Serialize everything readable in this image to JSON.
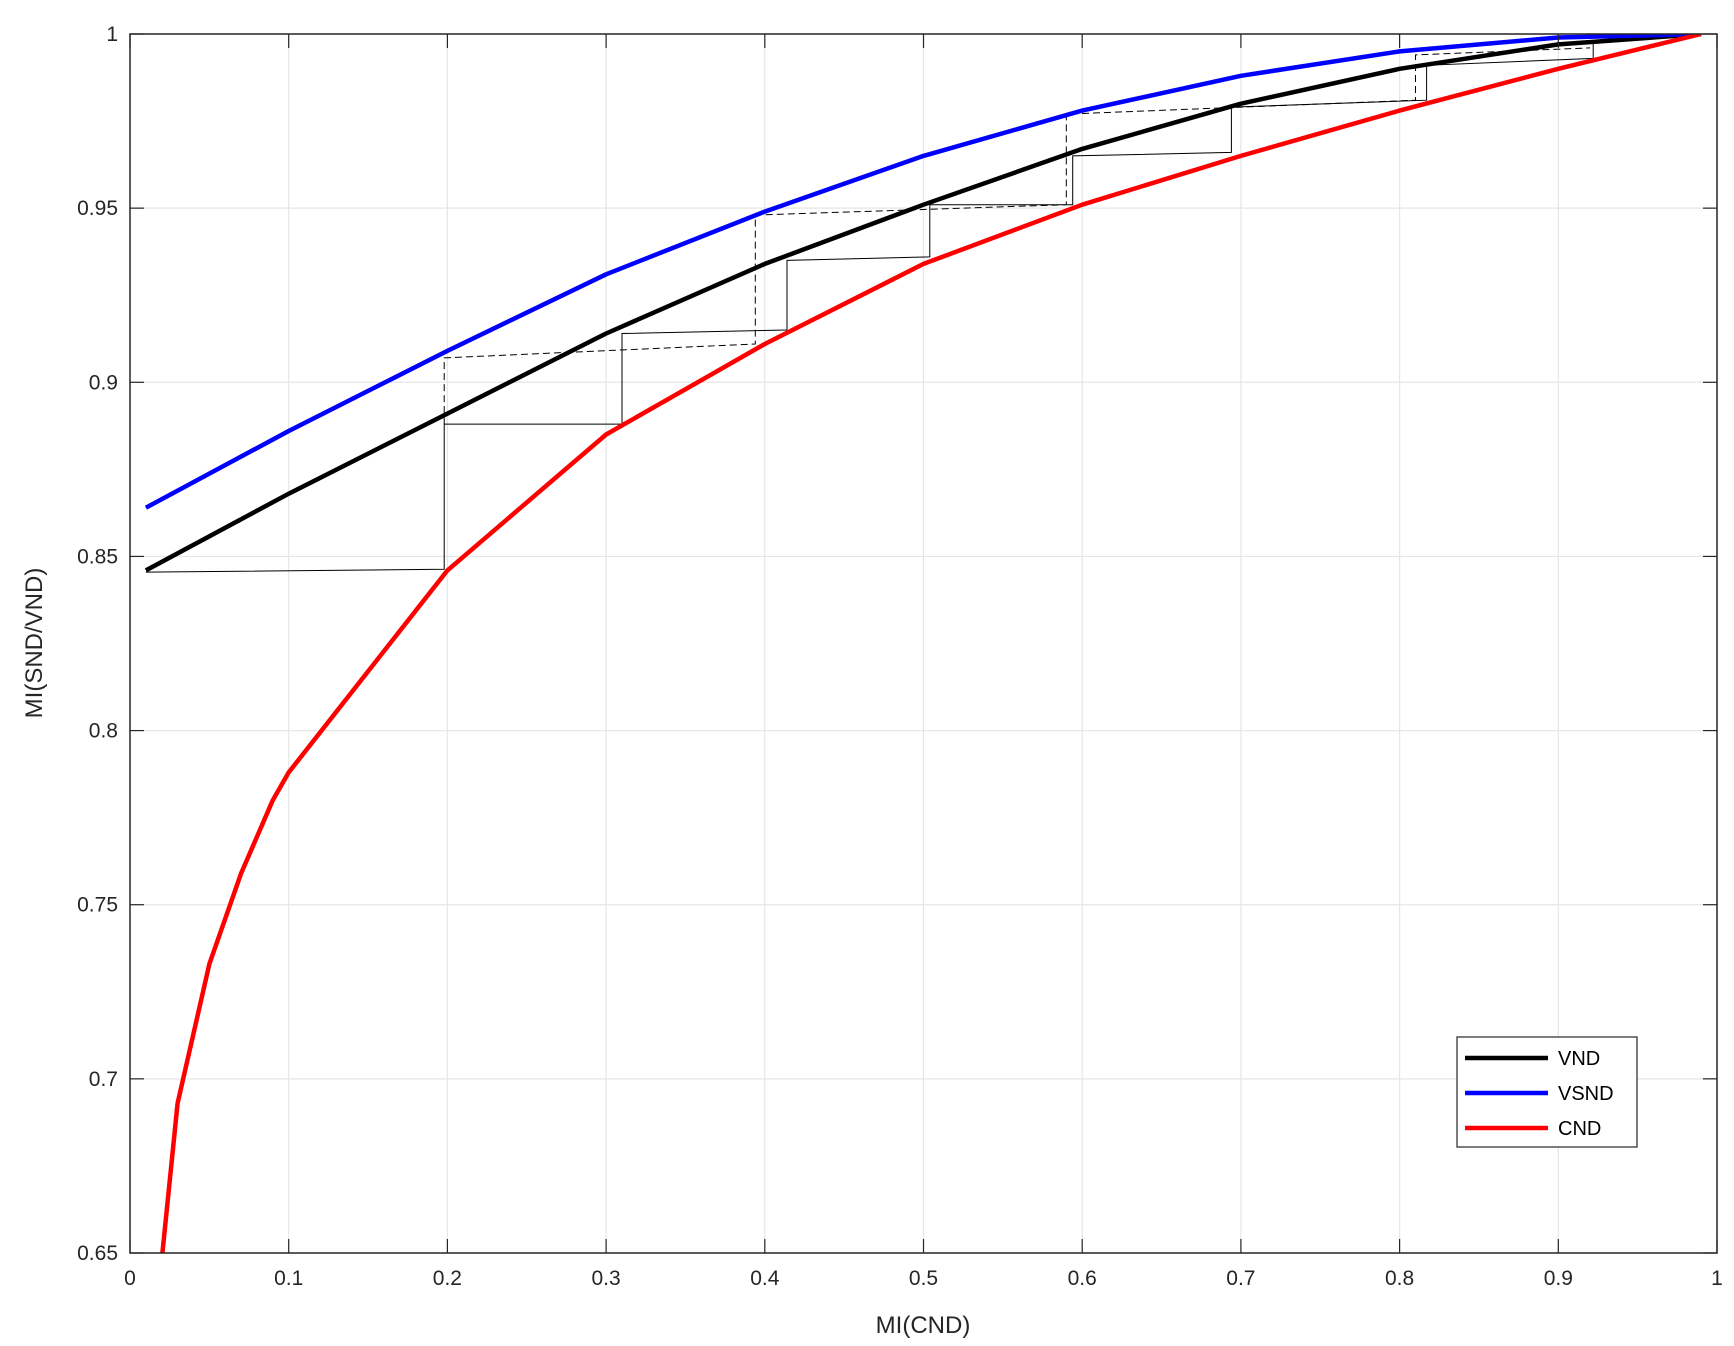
{
  "chart_data": {
    "type": "line",
    "xlabel": "MI(CND)",
    "ylabel": "MI(SND/VND)",
    "xlim": [
      0,
      1
    ],
    "ylim": [
      0.65,
      1
    ],
    "grid": true,
    "legend_position": "bottom-right",
    "x_ticks": [
      "0",
      "0.1",
      "0.2",
      "0.3",
      "0.4",
      "0.5",
      "0.6",
      "0.7",
      "0.8",
      "0.9",
      "1"
    ],
    "y_ticks": [
      "0.65",
      "0.7",
      "0.75",
      "0.8",
      "0.85",
      "0.9",
      "0.95",
      "1"
    ],
    "series": [
      {
        "name": "VND",
        "color": "#000000",
        "x": [
          0.01,
          0.1,
          0.2,
          0.3,
          0.4,
          0.5,
          0.6,
          0.7,
          0.8,
          0.9,
          0.99
        ],
        "y": [
          0.846,
          0.868,
          0.891,
          0.914,
          0.934,
          0.951,
          0.967,
          0.98,
          0.99,
          0.997,
          1.0
        ]
      },
      {
        "name": "VSND",
        "color": "#0000ff",
        "x": [
          0.01,
          0.1,
          0.2,
          0.3,
          0.4,
          0.5,
          0.6,
          0.7,
          0.8,
          0.9,
          0.99
        ],
        "y": [
          0.864,
          0.886,
          0.909,
          0.931,
          0.949,
          0.965,
          0.978,
          0.988,
          0.995,
          0.999,
          1.0
        ]
      },
      {
        "name": "CND",
        "color": "#ff0000",
        "x": [
          0.02,
          0.03,
          0.05,
          0.07,
          0.09,
          0.1,
          0.2,
          0.3,
          0.4,
          0.5,
          0.6,
          0.7,
          0.8,
          0.9,
          0.99
        ],
        "y": [
          0.648,
          0.693,
          0.733,
          0.759,
          0.78,
          0.788,
          0.846,
          0.885,
          0.911,
          0.934,
          0.951,
          0.965,
          0.978,
          0.99,
          1.0
        ]
      }
    ],
    "annotations": {
      "solid_staircase": [
        [
          0.01,
          0.8455
        ],
        [
          0.198,
          0.8463
        ],
        [
          0.198,
          0.888
        ],
        [
          0.31,
          0.888
        ],
        [
          0.31,
          0.914
        ],
        [
          0.414,
          0.915
        ],
        [
          0.414,
          0.935
        ],
        [
          0.504,
          0.936
        ],
        [
          0.504,
          0.951
        ],
        [
          0.594,
          0.951
        ],
        [
          0.594,
          0.965
        ],
        [
          0.694,
          0.966
        ],
        [
          0.694,
          0.979
        ],
        [
          0.817,
          0.981
        ],
        [
          0.817,
          0.991
        ],
        [
          0.922,
          0.993
        ],
        [
          0.922,
          0.998
        ]
      ],
      "dashed_staircase": [
        [
          0.198,
          0.888
        ],
        [
          0.198,
          0.907
        ],
        [
          0.394,
          0.911
        ],
        [
          0.394,
          0.948
        ],
        [
          0.59,
          0.951
        ],
        [
          0.59,
          0.977
        ],
        [
          0.81,
          0.981
        ],
        [
          0.81,
          0.994
        ],
        [
          0.92,
          0.996
        ]
      ]
    }
  }
}
